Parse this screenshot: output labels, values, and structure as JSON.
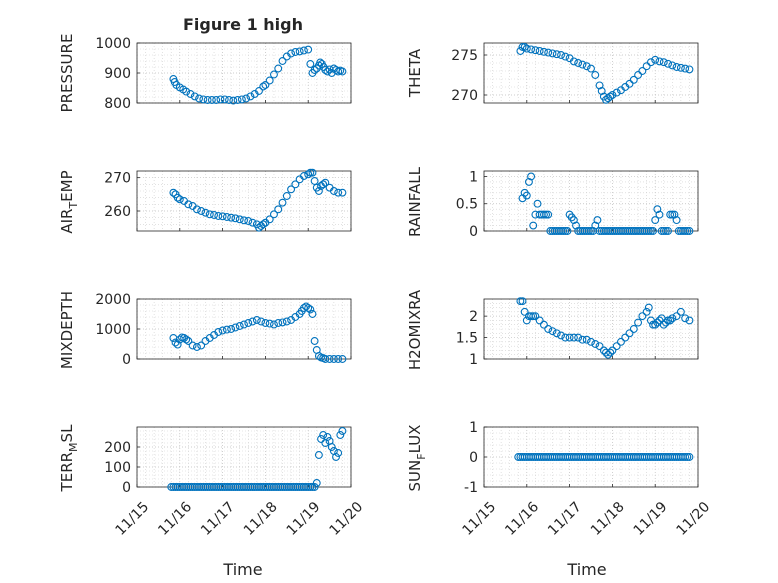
{
  "figure_title": "Figure 1 high",
  "x_ticks": [
    "11/15",
    "11/16",
    "11/17",
    "11/18",
    "11/19",
    "11/20"
  ],
  "x_label": "Time",
  "marker_color": "#0072BD",
  "chart_data": [
    {
      "type": "scatter",
      "title": "Figure 1 high",
      "ylabel": "PRESSURE",
      "ylim": [
        800,
        1000
      ],
      "yticks": [
        800,
        900,
        1000
      ],
      "xlabel": "",
      "grid": true,
      "series": [
        {
          "name": "PRESSURE",
          "x": [
            0.85,
            0.88,
            0.92,
            1.0,
            1.08,
            1.15,
            1.25,
            1.35,
            1.45,
            1.55,
            1.65,
            1.75,
            1.85,
            1.95,
            2.05,
            2.15,
            2.25,
            2.35,
            2.45,
            2.55,
            2.65,
            2.75,
            2.85,
            2.95,
            3.0,
            3.1,
            3.2,
            3.3,
            3.4,
            3.5,
            3.6,
            3.7,
            3.8,
            3.9,
            4.0,
            4.05,
            4.1,
            4.15,
            4.2,
            4.25,
            4.28,
            4.32,
            4.36,
            4.4,
            4.45,
            4.5,
            4.55,
            4.6,
            4.65,
            4.7,
            4.75,
            4.8
          ],
          "y": [
            880,
            870,
            860,
            852,
            845,
            838,
            830,
            822,
            815,
            812,
            810,
            810,
            810,
            812,
            812,
            810,
            808,
            810,
            812,
            815,
            822,
            830,
            840,
            855,
            860,
            875,
            895,
            915,
            940,
            955,
            965,
            970,
            972,
            975,
            978,
            930,
            900,
            910,
            915,
            925,
            935,
            930,
            920,
            910,
            905,
            912,
            900,
            915,
            910,
            905,
            908,
            905
          ]
        }
      ]
    },
    {
      "type": "scatter",
      "title": "",
      "ylabel": "THETA",
      "ylim": [
        269,
        276.5
      ],
      "yticks": [
        270,
        275
      ],
      "xlabel": "",
      "grid": true,
      "series": [
        {
          "name": "THETA",
          "x": [
            0.85,
            0.9,
            0.95,
            1.0,
            1.1,
            1.2,
            1.3,
            1.4,
            1.5,
            1.6,
            1.7,
            1.8,
            1.9,
            2.0,
            2.1,
            2.2,
            2.3,
            2.4,
            2.5,
            2.6,
            2.7,
            2.75,
            2.8,
            2.85,
            2.9,
            2.95,
            3.0,
            3.1,
            3.2,
            3.3,
            3.4,
            3.5,
            3.6,
            3.7,
            3.8,
            3.9,
            4.0,
            4.1,
            4.2,
            4.3,
            4.4,
            4.5,
            4.6,
            4.7,
            4.8
          ],
          "y": [
            275.5,
            276,
            276,
            275.8,
            275.7,
            275.6,
            275.5,
            275.4,
            275.3,
            275.2,
            275.1,
            275,
            274.8,
            274.6,
            274.2,
            274,
            273.8,
            273.6,
            273.3,
            272.5,
            271.2,
            270.5,
            269.8,
            269.4,
            269.6,
            269.8,
            270,
            270.3,
            270.6,
            271,
            271.4,
            271.9,
            272.5,
            273,
            273.6,
            274.1,
            274.4,
            274.2,
            274.1,
            273.9,
            273.7,
            273.5,
            273.4,
            273.3,
            273.2
          ]
        }
      ]
    },
    {
      "type": "scatter",
      "title": "",
      "ylabel": "AIR_TEMP",
      "ylim": [
        254,
        272
      ],
      "yticks": [
        260,
        270
      ],
      "xlabel": "",
      "grid": true,
      "series": [
        {
          "name": "AIR_TEMP",
          "x": [
            0.85,
            0.9,
            0.95,
            1.0,
            1.1,
            1.2,
            1.3,
            1.4,
            1.5,
            1.6,
            1.7,
            1.8,
            1.9,
            2.0,
            2.1,
            2.2,
            2.3,
            2.4,
            2.5,
            2.6,
            2.7,
            2.8,
            2.85,
            2.9,
            2.95,
            3.0,
            3.1,
            3.2,
            3.3,
            3.4,
            3.5,
            3.6,
            3.7,
            3.8,
            3.9,
            4.0,
            4.05,
            4.1,
            4.15,
            4.2,
            4.25,
            4.3,
            4.35,
            4.4,
            4.5,
            4.6,
            4.7,
            4.8
          ],
          "y": [
            265.5,
            265,
            264,
            263.5,
            263,
            262,
            261.5,
            260.5,
            260,
            259.5,
            259,
            258.8,
            258.5,
            258.4,
            258.2,
            258,
            257.8,
            257.5,
            257.2,
            257,
            256.5,
            256,
            255,
            255.5,
            256,
            256.5,
            257.5,
            259,
            260.5,
            262.5,
            264.5,
            266.5,
            268,
            269.5,
            270.5,
            271,
            271.5,
            271.5,
            269,
            267,
            266,
            267.5,
            268,
            268.5,
            267,
            266,
            265.5,
            265.5
          ]
        }
      ]
    },
    {
      "type": "scatter",
      "title": "",
      "ylabel": "RAINFALL",
      "ylim": [
        0,
        1.1
      ],
      "yticks": [
        0,
        0.5,
        1
      ],
      "xlabel": "",
      "grid": true,
      "series": [
        {
          "name": "RAINFALL",
          "x": [
            0.9,
            0.95,
            1.0,
            1.05,
            1.1,
            1.15,
            1.2,
            1.25,
            1.3,
            1.35,
            1.4,
            1.45,
            1.5,
            1.55,
            1.6,
            1.65,
            1.7,
            1.75,
            1.8,
            1.85,
            1.9,
            1.95,
            2.0,
            2.05,
            2.1,
            2.15,
            2.2,
            2.25,
            2.3,
            2.35,
            2.4,
            2.45,
            2.5,
            2.55,
            2.6,
            2.65,
            2.7,
            2.75,
            2.8,
            2.85,
            2.9,
            2.95,
            3.0,
            3.05,
            3.1,
            3.15,
            3.2,
            3.25,
            3.3,
            3.35,
            3.4,
            3.45,
            3.5,
            3.55,
            3.6,
            3.65,
            3.7,
            3.75,
            3.8,
            3.85,
            3.9,
            3.95,
            4.0,
            4.05,
            4.1,
            4.15,
            4.2,
            4.25,
            4.3,
            4.35,
            4.4,
            4.45,
            4.5,
            4.55,
            4.6,
            4.65,
            4.7,
            4.75,
            4.8
          ],
          "y": [
            0.6,
            0.7,
            0.65,
            0.9,
            1.0,
            0.1,
            0.3,
            0.5,
            0.3,
            0.3,
            0.3,
            0.3,
            0.3,
            0.0,
            0.0,
            0.0,
            0.0,
            0.0,
            0.0,
            0.0,
            0.0,
            0.0,
            0.3,
            0.25,
            0.2,
            0.1,
            0.0,
            0.0,
            0.0,
            0.0,
            0.0,
            0.0,
            0.0,
            0.0,
            0.1,
            0.2,
            0.0,
            0.0,
            0.0,
            0.0,
            0.0,
            0.0,
            0.0,
            0.0,
            0.0,
            0.0,
            0.0,
            0.0,
            0.0,
            0.0,
            0.0,
            0.0,
            0.0,
            0.0,
            0.0,
            0.0,
            0.0,
            0.0,
            0.0,
            0.0,
            0.0,
            0.0,
            0.2,
            0.4,
            0.3,
            0.0,
            0.0,
            0.0,
            0.0,
            0.3,
            0.3,
            0.3,
            0.2,
            0.0,
            0.0,
            0.0,
            0.0,
            0.0,
            0.0
          ]
        }
      ]
    },
    {
      "type": "scatter",
      "title": "",
      "ylabel": "MIXDEPTH",
      "ylim": [
        0,
        2000
      ],
      "yticks": [
        0,
        1000,
        2000
      ],
      "xlabel": "",
      "grid": true,
      "series": [
        {
          "name": "MIXDEPTH",
          "x": [
            0.85,
            0.9,
            0.95,
            1.0,
            1.05,
            1.1,
            1.15,
            1.2,
            1.3,
            1.4,
            1.5,
            1.6,
            1.7,
            1.8,
            1.9,
            2.0,
            2.1,
            2.2,
            2.3,
            2.4,
            2.5,
            2.6,
            2.7,
            2.8,
            2.9,
            3.0,
            3.1,
            3.2,
            3.3,
            3.4,
            3.5,
            3.6,
            3.7,
            3.8,
            3.85,
            3.9,
            3.95,
            4.0,
            4.05,
            4.1,
            4.15,
            4.2,
            4.25,
            4.3,
            4.35,
            4.4,
            4.5,
            4.6,
            4.7,
            4.8
          ],
          "y": [
            700,
            550,
            480,
            650,
            720,
            700,
            650,
            600,
            450,
            400,
            450,
            600,
            700,
            800,
            900,
            950,
            980,
            1000,
            1050,
            1100,
            1150,
            1200,
            1250,
            1300,
            1250,
            1200,
            1180,
            1150,
            1200,
            1220,
            1250,
            1300,
            1400,
            1500,
            1600,
            1700,
            1750,
            1700,
            1650,
            1500,
            600,
            300,
            100,
            50,
            30,
            0,
            0,
            0,
            0,
            0
          ]
        }
      ]
    },
    {
      "type": "scatter",
      "title": "",
      "ylabel": "H2OMIXRA",
      "ylim": [
        1,
        2.4
      ],
      "yticks": [
        1,
        1.5,
        2
      ],
      "xlabel": "",
      "grid": true,
      "series": [
        {
          "name": "H2OMIXRA",
          "x": [
            0.85,
            0.9,
            0.95,
            1.0,
            1.05,
            1.1,
            1.15,
            1.2,
            1.3,
            1.4,
            1.5,
            1.6,
            1.7,
            1.8,
            1.9,
            2.0,
            2.1,
            2.2,
            2.3,
            2.4,
            2.5,
            2.6,
            2.7,
            2.8,
            2.85,
            2.9,
            2.95,
            3.0,
            3.1,
            3.2,
            3.3,
            3.4,
            3.5,
            3.6,
            3.7,
            3.8,
            3.85,
            3.9,
            3.95,
            4.0,
            4.05,
            4.1,
            4.15,
            4.2,
            4.25,
            4.3,
            4.35,
            4.4,
            4.5,
            4.6,
            4.7,
            4.8
          ],
          "y": [
            2.35,
            2.35,
            2.1,
            1.9,
            2.0,
            2.0,
            2.0,
            2.0,
            1.9,
            1.8,
            1.7,
            1.65,
            1.6,
            1.55,
            1.5,
            1.5,
            1.5,
            1.5,
            1.45,
            1.45,
            1.4,
            1.35,
            1.3,
            1.2,
            1.15,
            1.1,
            1.15,
            1.2,
            1.3,
            1.4,
            1.5,
            1.6,
            1.7,
            1.85,
            2.0,
            2.1,
            2.2,
            1.9,
            1.8,
            1.8,
            1.85,
            1.9,
            1.95,
            1.8,
            1.85,
            1.9,
            1.9,
            1.95,
            2.0,
            2.1,
            1.95,
            1.9
          ]
        }
      ]
    },
    {
      "type": "scatter",
      "title": "",
      "ylabel": "TERR_MSL",
      "ylim": [
        0,
        300
      ],
      "yticks": [
        0,
        100,
        200
      ],
      "xlabel": "Time",
      "grid": true,
      "series": [
        {
          "name": "TERR_MSL",
          "x": [
            0.8,
            0.85,
            0.9,
            0.95,
            1.0,
            1.05,
            1.1,
            1.15,
            1.2,
            1.25,
            1.3,
            1.35,
            1.4,
            1.45,
            1.5,
            1.55,
            1.6,
            1.65,
            1.7,
            1.75,
            1.8,
            1.85,
            1.9,
            1.95,
            2.0,
            2.05,
            2.1,
            2.15,
            2.2,
            2.25,
            2.3,
            2.35,
            2.4,
            2.45,
            2.5,
            2.55,
            2.6,
            2.65,
            2.7,
            2.75,
            2.8,
            2.85,
            2.9,
            2.95,
            3.0,
            3.05,
            3.1,
            3.15,
            3.2,
            3.25,
            3.3,
            3.35,
            3.4,
            3.45,
            3.5,
            3.55,
            3.6,
            3.65,
            3.7,
            3.75,
            3.8,
            3.85,
            3.9,
            3.95,
            4.0,
            4.05,
            4.1,
            4.15,
            4.2,
            4.25,
            4.3,
            4.35,
            4.4,
            4.45,
            4.5,
            4.55,
            4.6,
            4.65,
            4.7,
            4.75,
            4.8
          ],
          "y": [
            0,
            0,
            0,
            0,
            0,
            0,
            0,
            0,
            0,
            0,
            0,
            0,
            0,
            0,
            0,
            0,
            0,
            0,
            0,
            0,
            0,
            0,
            0,
            0,
            0,
            0,
            0,
            0,
            0,
            0,
            0,
            0,
            0,
            0,
            0,
            0,
            0,
            0,
            0,
            0,
            0,
            0,
            0,
            0,
            0,
            0,
            0,
            0,
            0,
            0,
            0,
            0,
            0,
            0,
            0,
            0,
            0,
            0,
            0,
            0,
            0,
            0,
            0,
            0,
            0,
            0,
            0,
            0,
            20,
            160,
            240,
            260,
            220,
            250,
            230,
            200,
            180,
            150,
            170,
            260,
            280
          ]
        }
      ]
    },
    {
      "type": "scatter",
      "title": "",
      "ylabel": "SUN_FLUX",
      "ylim": [
        -1,
        1
      ],
      "yticks": [
        -1,
        0,
        1
      ],
      "xlabel": "Time",
      "grid": true,
      "series": [
        {
          "name": "SUN_FLUX",
          "x": [
            0.8,
            0.85,
            0.9,
            0.95,
            1.0,
            1.05,
            1.1,
            1.15,
            1.2,
            1.25,
            1.3,
            1.35,
            1.4,
            1.45,
            1.5,
            1.55,
            1.6,
            1.65,
            1.7,
            1.75,
            1.8,
            1.85,
            1.9,
            1.95,
            2.0,
            2.05,
            2.1,
            2.15,
            2.2,
            2.25,
            2.3,
            2.35,
            2.4,
            2.45,
            2.5,
            2.55,
            2.6,
            2.65,
            2.7,
            2.75,
            2.8,
            2.85,
            2.9,
            2.95,
            3.0,
            3.05,
            3.1,
            3.15,
            3.2,
            3.25,
            3.3,
            3.35,
            3.4,
            3.45,
            3.5,
            3.55,
            3.6,
            3.65,
            3.7,
            3.75,
            3.8,
            3.85,
            3.9,
            3.95,
            4.0,
            4.05,
            4.1,
            4.15,
            4.2,
            4.25,
            4.3,
            4.35,
            4.4,
            4.45,
            4.5,
            4.55,
            4.6,
            4.65,
            4.7,
            4.75,
            4.8
          ],
          "y": [
            0,
            0,
            0,
            0,
            0,
            0,
            0,
            0,
            0,
            0,
            0,
            0,
            0,
            0,
            0,
            0,
            0,
            0,
            0,
            0,
            0,
            0,
            0,
            0,
            0,
            0,
            0,
            0,
            0,
            0,
            0,
            0,
            0,
            0,
            0,
            0,
            0,
            0,
            0,
            0,
            0,
            0,
            0,
            0,
            0,
            0,
            0,
            0,
            0,
            0,
            0,
            0,
            0,
            0,
            0,
            0,
            0,
            0,
            0,
            0,
            0,
            0,
            0,
            0,
            0,
            0,
            0,
            0,
            0,
            0,
            0,
            0,
            0,
            0,
            0,
            0,
            0,
            0,
            0,
            0,
            0
          ]
        }
      ]
    }
  ]
}
